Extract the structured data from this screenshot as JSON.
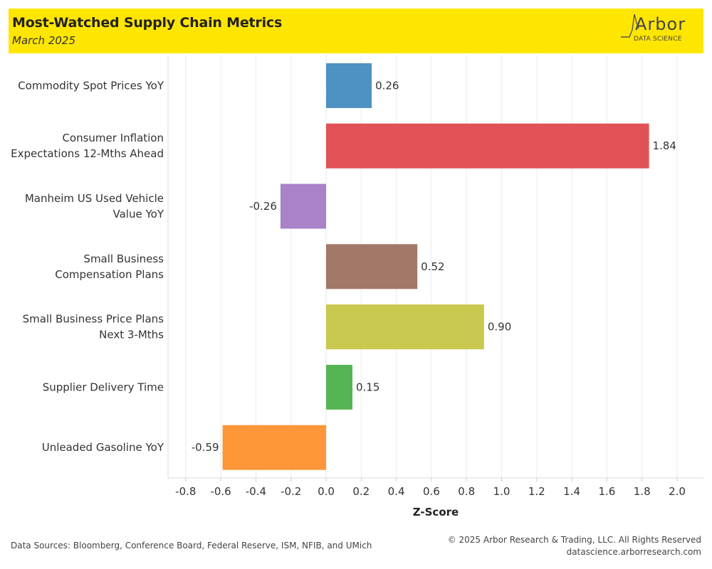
{
  "header": {
    "title": "Most-Watched Supply Chain Metrics",
    "subtitle": "March 2025",
    "logo_word": "Arbor",
    "logo_sub": "DATA SCIENCE"
  },
  "chart_data": {
    "type": "bar",
    "orientation": "horizontal",
    "categories": [
      [
        "Commodity Spot Prices YoY"
      ],
      [
        "Consumer Inflation",
        "Expectations 12-Mths Ahead"
      ],
      [
        "Manheim US Used Vehicle",
        "Value YoY"
      ],
      [
        "Small Business",
        "Compensation Plans"
      ],
      [
        "Small Business Price Plans",
        "Next 3-Mths"
      ],
      [
        "Supplier Delivery Time"
      ],
      [
        "Unleaded Gasoline YoY"
      ]
    ],
    "values": [
      0.26,
      1.84,
      -0.26,
      0.52,
      0.9,
      0.15,
      -0.59
    ],
    "value_labels": [
      "0.26",
      "1.84",
      "-0.26",
      "0.52",
      "0.90",
      "0.15",
      "-0.59"
    ],
    "colors": [
      "#4e92c3",
      "#e05256",
      "#a982c9",
      "#a37868",
      "#c9c84f",
      "#55b555",
      "#fd9638"
    ],
    "xlabel": "Z-Score",
    "xlim": [
      -0.9,
      2.15
    ],
    "xticks": [
      -0.8,
      -0.6,
      -0.4,
      -0.2,
      0.0,
      0.2,
      0.4,
      0.6,
      0.8,
      1.0,
      1.2,
      1.4,
      1.6,
      1.8,
      2.0
    ],
    "xtick_labels": [
      "-0.8",
      "-0.6",
      "-0.4",
      "-0.2",
      "0.0",
      "0.2",
      "0.4",
      "0.6",
      "0.8",
      "1.0",
      "1.2",
      "1.4",
      "1.6",
      "1.8",
      "2.0"
    ],
    "grid": true
  },
  "footer": {
    "sources": "Data Sources: Bloomberg, Conference Board, Federal Reserve, ISM, NFIB, and UMich",
    "copyright": "© 2025 Arbor Research & Trading, LLC. All Rights Reserved",
    "url": "datascience.arborresearch.com"
  }
}
